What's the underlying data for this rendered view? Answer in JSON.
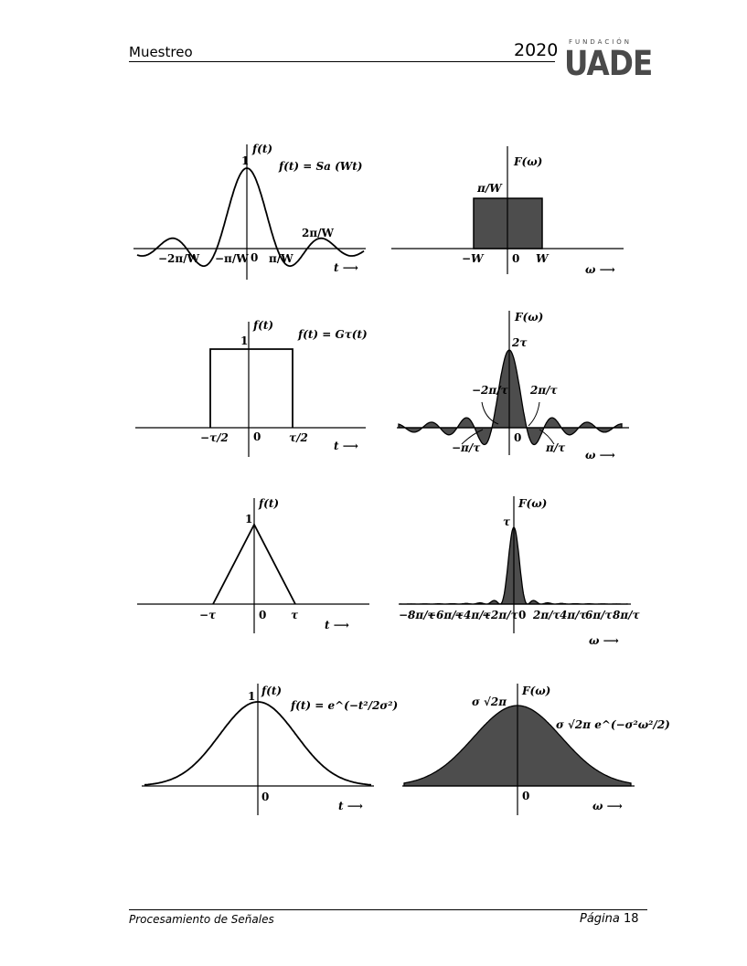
{
  "header": {
    "title": "Muestreo",
    "year": "2020",
    "logo": {
      "small": "FUNDACIÓN",
      "big": "UADE"
    }
  },
  "footer": {
    "course": "Procesamiento de Señales",
    "page_word": "Página",
    "page_number": "18"
  },
  "figures": {
    "row1": {
      "left": {
        "axis": "f(t)",
        "peak": "1",
        "formula": "f(t) = Sa (Wt)",
        "origin": "0",
        "t_axis": "t ⟶",
        "ticks": [
          "−2π/W",
          "−π/W",
          "π/W",
          "2π/W"
        ]
      },
      "right": {
        "axis": "F(ω)",
        "height": "π/W",
        "neg": "−W",
        "origin": "0",
        "pos": "W",
        "w_axis": "ω ⟶"
      }
    },
    "row2": {
      "left": {
        "axis": "f(t)",
        "peak": "1",
        "formula": "f(t) = Gτ(t)",
        "origin": "0",
        "t_axis": "t ⟶",
        "neg": "−τ/2",
        "pos": "τ/2"
      },
      "right": {
        "axis": "F(ω)",
        "peak": "2τ",
        "origin": "0",
        "w_axis": "ω ⟶",
        "ann": [
          "−2π/τ",
          "2π/τ",
          "−π/τ",
          "π/τ"
        ]
      }
    },
    "row3": {
      "left": {
        "axis": "f(t)",
        "peak": "1",
        "origin": "0",
        "neg": "−τ",
        "pos": "τ",
        "t_axis": "t ⟶"
      },
      "right": {
        "axis": "F(ω)",
        "peak": "τ",
        "origin": "0",
        "w_axis": "ω ⟶",
        "ticks": [
          "−8π/τ",
          "−6π/τ",
          "−4π/τ",
          "−2π/τ",
          "2π/τ",
          "4π/τ",
          "6π/τ",
          "8π/τ"
        ]
      }
    },
    "row4": {
      "left": {
        "axis": "f(t)",
        "peak": "1",
        "formula": "f(t) = e^(−t²/2σ²)",
        "origin": "0",
        "t_axis": "t ⟶"
      },
      "right": {
        "axis": "F(ω)",
        "peak": "σ √2π",
        "formula": "σ √2π e^(−σ²ω²/2)",
        "origin": "0",
        "w_axis": "ω ⟶"
      }
    }
  },
  "colors": {
    "ink": "#000000",
    "fill": "#4d4d4d",
    "logo": "#4a4a4a"
  }
}
